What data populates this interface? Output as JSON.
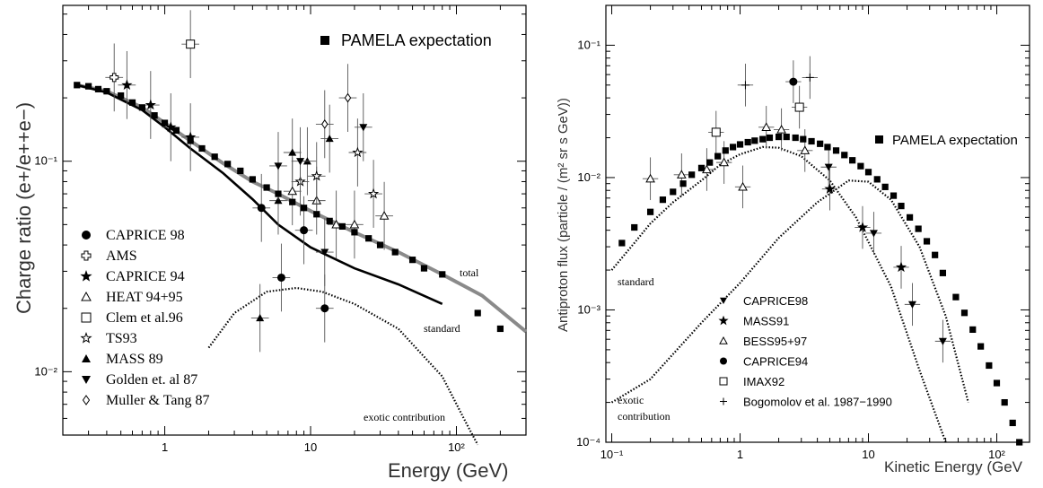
{
  "chart_data": [
    {
      "type": "scatter",
      "panel": "left",
      "xlabel": "Energy (GeV)",
      "ylabel": "Charge ratio (e+/e++e−)",
      "xscale": "log",
      "yscale": "log",
      "xlim": [
        0.2,
        300
      ],
      "ylim": [
        0.005,
        0.55
      ],
      "x_tick_labels": [
        "1",
        "10",
        "10²"
      ],
      "y_tick_labels": [
        "10⁻²",
        "10⁻¹"
      ],
      "pamela_label": "PAMELA expectation",
      "legend_position": "lower-left",
      "curves": [
        {
          "name": "total",
          "label": "total",
          "color": "#8a8a8a",
          "x": [
            0.25,
            0.4,
            0.7,
            1,
            1.5,
            2.5,
            4,
            6,
            10,
            20,
            40,
            80,
            150,
            300
          ],
          "y": [
            0.23,
            0.215,
            0.18,
            0.152,
            0.125,
            0.098,
            0.08,
            0.07,
            0.058,
            0.046,
            0.037,
            0.029,
            0.023,
            0.0155
          ]
        },
        {
          "name": "standard",
          "label": "standard",
          "color": "#000000",
          "x": [
            0.25,
            0.4,
            0.7,
            1,
            1.5,
            2.5,
            4,
            6,
            10,
            20,
            40,
            80
          ],
          "y": [
            0.23,
            0.212,
            0.175,
            0.145,
            0.115,
            0.088,
            0.066,
            0.05,
            0.039,
            0.031,
            0.026,
            0.021
          ]
        },
        {
          "name": "exotic contribution",
          "label": "exotic contribution",
          "color": "#000000",
          "dotted": true,
          "x": [
            2,
            3,
            5,
            8,
            12,
            20,
            40,
            80,
            120,
            140
          ],
          "y": [
            0.013,
            0.019,
            0.024,
            0.025,
            0.024,
            0.021,
            0.016,
            0.0095,
            0.0055,
            0.0045
          ]
        }
      ],
      "series": [
        {
          "name": "CAPRICE 98",
          "marker": "filled-circle",
          "points": [
            [
              4.6,
              0.06
            ],
            [
              6.3,
              0.028
            ],
            [
              9,
              0.047
            ],
            [
              12.5,
              0.02
            ]
          ]
        },
        {
          "name": "AMS",
          "marker": "open-cross",
          "points": [
            [
              0.45,
              0.25
            ]
          ]
        },
        {
          "name": "CAPRICE 94",
          "marker": "filled-star",
          "points": [
            [
              0.55,
              0.23
            ],
            [
              0.8,
              0.185
            ],
            [
              1.1,
              0.145
            ],
            [
              1.5,
              0.13
            ]
          ]
        },
        {
          "name": "HEAT 94+95",
          "marker": "open-triangle",
          "points": [
            [
              7.5,
              0.072
            ],
            [
              11,
              0.065
            ],
            [
              15,
              0.05
            ],
            [
              20,
              0.05
            ],
            [
              32,
              0.055
            ]
          ]
        },
        {
          "name": "Clem et al.96",
          "marker": "open-square",
          "points": [
            [
              1.5,
              0.36
            ]
          ]
        },
        {
          "name": "TS93",
          "marker": "open-star",
          "points": [
            [
              8.5,
              0.08
            ],
            [
              11,
              0.085
            ],
            [
              21,
              0.11
            ],
            [
              27,
              0.07
            ]
          ]
        },
        {
          "name": "MASS 89",
          "marker": "filled-triangle",
          "points": [
            [
              4.5,
              0.018
            ],
            [
              6,
              0.065
            ],
            [
              7.5,
              0.11
            ],
            [
              9.5,
              0.1
            ],
            [
              13.5,
              0.128
            ]
          ]
        },
        {
          "name": "Golden et. al 87",
          "marker": "filled-triangle-down",
          "points": [
            [
              6,
              0.095
            ],
            [
              8.5,
              0.1
            ],
            [
              12.5,
              0.037
            ],
            [
              23,
              0.145
            ]
          ]
        },
        {
          "name": "Muller & Tang 87",
          "marker": "open-diamond",
          "points": [
            [
              12.5,
              0.15
            ],
            [
              18,
              0.2
            ]
          ]
        },
        {
          "name": "PAMELA expectation",
          "marker": "filled-square",
          "points": [
            [
              0.25,
              0.23
            ],
            [
              0.3,
              0.227
            ],
            [
              0.35,
              0.22
            ],
            [
              0.4,
              0.215
            ],
            [
              0.5,
              0.205
            ],
            [
              0.6,
              0.19
            ],
            [
              0.7,
              0.18
            ],
            [
              0.85,
              0.165
            ],
            [
              1,
              0.152
            ],
            [
              1.2,
              0.14
            ],
            [
              1.5,
              0.125
            ],
            [
              1.8,
              0.115
            ],
            [
              2.2,
              0.105
            ],
            [
              2.7,
              0.097
            ],
            [
              3.3,
              0.09
            ],
            [
              4,
              0.082
            ],
            [
              5,
              0.075
            ],
            [
              6,
              0.07
            ],
            [
              7.5,
              0.064
            ],
            [
              9,
              0.06
            ],
            [
              11,
              0.056
            ],
            [
              13.5,
              0.052
            ],
            [
              16.5,
              0.049
            ],
            [
              20,
              0.046
            ],
            [
              25,
              0.043
            ],
            [
              30,
              0.04
            ],
            [
              38,
              0.037
            ],
            [
              50,
              0.034
            ],
            [
              60,
              0.031
            ],
            [
              80,
              0.029
            ],
            [
              140,
              0.019
            ],
            [
              200,
              0.016
            ]
          ]
        }
      ]
    },
    {
      "type": "scatter",
      "panel": "right",
      "xlabel": "Kinetic Energy (GeV",
      "ylabel": "Antiproton flux (particle / (m² sr s GeV))",
      "xscale": "log",
      "yscale": "log",
      "xlim": [
        0.09,
        180
      ],
      "ylim": [
        0.0001,
        0.2
      ],
      "x_tick_labels": [
        "10⁻¹",
        "1",
        "10",
        "10²"
      ],
      "y_tick_labels": [
        "10⁻⁴",
        "10⁻³",
        "10⁻²",
        "10⁻¹"
      ],
      "pamela_label": "PAMELA expectation",
      "legend_position": "lower-center",
      "curves": [
        {
          "name": "standard",
          "label": "standard",
          "color": "#000000",
          "dotted": true,
          "x": [
            0.1,
            0.15,
            0.2,
            0.3,
            0.5,
            0.7,
            1,
            1.5,
            2,
            3,
            5,
            8,
            15,
            25,
            40
          ],
          "y": [
            0.002,
            0.0032,
            0.0045,
            0.0065,
            0.0095,
            0.0125,
            0.015,
            0.017,
            0.0168,
            0.0145,
            0.0095,
            0.005,
            0.0015,
            0.00035,
            0.0001
          ]
        },
        {
          "name": "exotic contribution",
          "label": "exotic\ncontribution",
          "color": "#000000",
          "dotted": true,
          "x": [
            0.1,
            0.2,
            0.5,
            1,
            2,
            4,
            7,
            10,
            15,
            25,
            40,
            60
          ],
          "y": [
            0.0002,
            0.0003,
            0.0008,
            0.0016,
            0.0035,
            0.0065,
            0.0095,
            0.0093,
            0.0068,
            0.003,
            0.0009,
            0.0002
          ]
        }
      ],
      "series": [
        {
          "name": "CAPRICE98",
          "marker": "filled-triangle-down",
          "points": [
            [
              4.9,
              0.012
            ],
            [
              11,
              0.0038
            ],
            [
              22,
              0.0011
            ],
            [
              38,
              0.00058
            ]
          ]
        },
        {
          "name": "MASS91",
          "marker": "filled-star",
          "points": [
            [
              5,
              0.0082
            ],
            [
              9,
              0.0042
            ],
            [
              18,
              0.0021
            ]
          ]
        },
        {
          "name": "BESS95+97",
          "marker": "open-triangle",
          "points": [
            [
              0.2,
              0.0098
            ],
            [
              0.35,
              0.0105
            ],
            [
              0.55,
              0.0115
            ],
            [
              0.75,
              0.013
            ],
            [
              1.05,
              0.0085
            ],
            [
              1.6,
              0.024
            ],
            [
              2.1,
              0.023
            ],
            [
              3.2,
              0.016
            ]
          ]
        },
        {
          "name": "CAPRICE94",
          "marker": "filled-circle",
          "points": [
            [
              2.6,
              0.053
            ]
          ]
        },
        {
          "name": "IMAX92",
          "marker": "open-square",
          "points": [
            [
              0.65,
              0.022
            ],
            [
              2.9,
              0.034
            ]
          ]
        },
        {
          "name": "Bogomolov et al. 1987−1990",
          "marker": "cross",
          "points": [
            [
              1.1,
              0.05
            ],
            [
              3.5,
              0.057
            ]
          ]
        },
        {
          "name": "PAMELA expectation",
          "marker": "filled-square",
          "points": [
            [
              0.12,
              0.0032
            ],
            [
              0.15,
              0.0042
            ],
            [
              0.2,
              0.0055
            ],
            [
              0.25,
              0.0068
            ],
            [
              0.3,
              0.0078
            ],
            [
              0.36,
              0.009
            ],
            [
              0.42,
              0.0105
            ],
            [
              0.5,
              0.0118
            ],
            [
              0.58,
              0.013
            ],
            [
              0.67,
              0.0145
            ],
            [
              0.77,
              0.016
            ],
            [
              0.88,
              0.017
            ],
            [
              1,
              0.0178
            ],
            [
              1.15,
              0.0185
            ],
            [
              1.3,
              0.019
            ],
            [
              1.5,
              0.0195
            ],
            [
              1.7,
              0.02
            ],
            [
              2,
              0.0203
            ],
            [
              2.3,
              0.0203
            ],
            [
              2.7,
              0.02
            ],
            [
              3.1,
              0.0195
            ],
            [
              3.6,
              0.0188
            ],
            [
              4.2,
              0.018
            ],
            [
              4.8,
              0.017
            ],
            [
              5.6,
              0.016
            ],
            [
              6.5,
              0.0148
            ],
            [
              7.5,
              0.0135
            ],
            [
              8.7,
              0.0122
            ],
            [
              10,
              0.011
            ],
            [
              11.7,
              0.0097
            ],
            [
              13.5,
              0.0085
            ],
            [
              15.7,
              0.0073
            ],
            [
              18,
              0.0061
            ],
            [
              21,
              0.005
            ],
            [
              24.5,
              0.0041
            ],
            [
              28.5,
              0.0033
            ],
            [
              33,
              0.0026
            ],
            [
              38,
              0.0019
            ],
            [
              48,
              0.00125
            ],
            [
              56,
              0.00095
            ],
            [
              65,
              0.00071
            ],
            [
              75,
              0.00053
            ],
            [
              87,
              0.00038
            ],
            [
              100,
              0.00028
            ],
            [
              115,
              0.0002
            ],
            [
              133,
              0.00014
            ],
            [
              150,
              0.0001
            ]
          ]
        }
      ]
    }
  ]
}
